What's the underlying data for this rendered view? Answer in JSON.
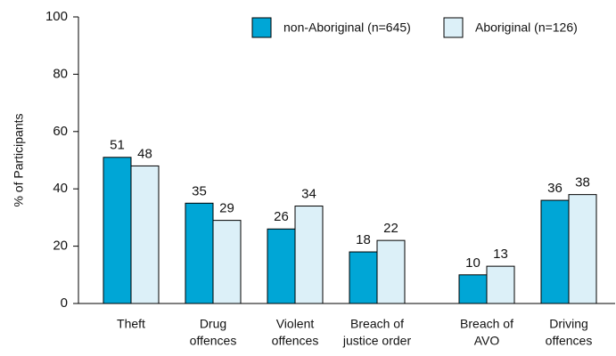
{
  "chart_data": {
    "type": "bar",
    "ylabel": "% of Participants",
    "categories": [
      [
        "Theft"
      ],
      [
        "Drug",
        "offences"
      ],
      [
        "Violent",
        "offences"
      ],
      [
        "Breach of",
        "justice order"
      ],
      [
        "Breach of",
        "AVO"
      ],
      [
        "Driving",
        "offences"
      ]
    ],
    "series": [
      {
        "name": "non-Aboriginal (n=645)",
        "color": "#00a6d6",
        "values": [
          51,
          35,
          26,
          18,
          10,
          36
        ]
      },
      {
        "name": "Aboriginal (n=126)",
        "color": "#dcf0f8",
        "values": [
          48,
          29,
          34,
          22,
          13,
          38
        ]
      }
    ],
    "ylim": [
      0,
      100
    ],
    "yticks": [
      0,
      20,
      40,
      60,
      80,
      100
    ]
  }
}
